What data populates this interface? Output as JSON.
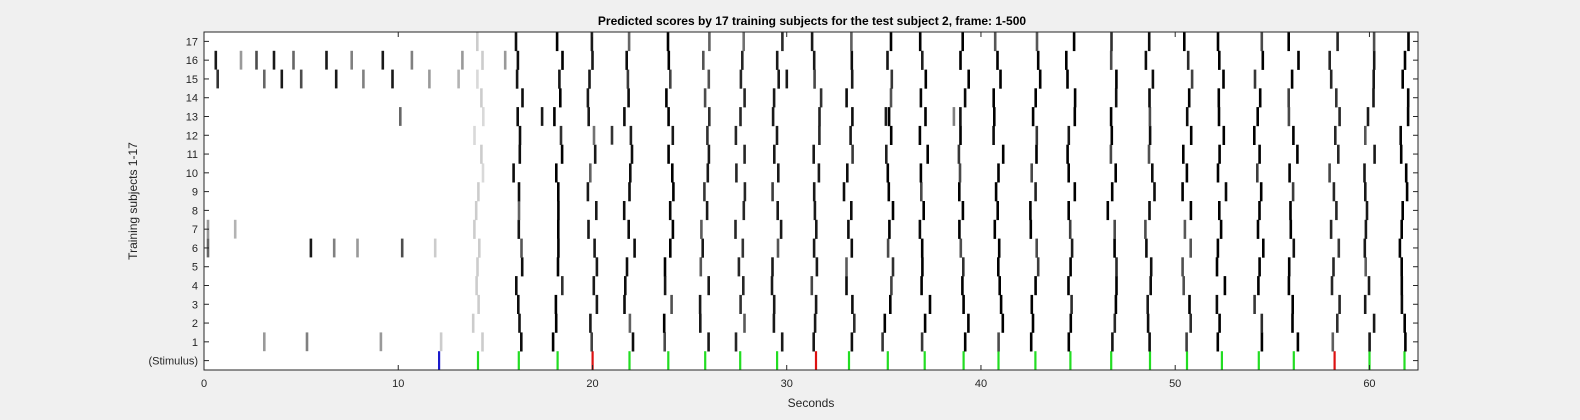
{
  "chart_data": {
    "type": "heatmap",
    "title": "Predicted scores by 17 training subjects for the test subject 2, frame: 1-500",
    "xlabel": "Seconds",
    "ylabel": "Training subjects 1-17",
    "xlim": [
      0,
      62.5
    ],
    "xticks": [
      0,
      10,
      20,
      30,
      40,
      50,
      60
    ],
    "ytick_labels": [
      "(Stimulus)",
      "1",
      "2",
      "3",
      "4",
      "5",
      "6",
      "7",
      "8",
      "9",
      "10",
      "11",
      "12",
      "13",
      "14",
      "15",
      "16",
      "17"
    ],
    "grid": false,
    "background": "#ffffff",
    "stimulus": {
      "events": [
        {
          "t": 12.1,
          "color": "#1a1acc"
        },
        {
          "t": 14.1,
          "color": "#22dd22"
        },
        {
          "t": 16.2,
          "color": "#22dd22"
        },
        {
          "t": 18.2,
          "color": "#22dd22"
        },
        {
          "t": 20.0,
          "color": "#dd1111"
        },
        {
          "t": 21.9,
          "color": "#22dd22"
        },
        {
          "t": 23.9,
          "color": "#22dd22"
        },
        {
          "t": 25.8,
          "color": "#22dd22"
        },
        {
          "t": 27.6,
          "color": "#22dd22"
        },
        {
          "t": 29.5,
          "color": "#22dd22"
        },
        {
          "t": 31.5,
          "color": "#dd1111"
        },
        {
          "t": 33.2,
          "color": "#22dd22"
        },
        {
          "t": 35.2,
          "color": "#22dd22"
        },
        {
          "t": 37.1,
          "color": "#22dd22"
        },
        {
          "t": 39.1,
          "color": "#22dd22"
        },
        {
          "t": 40.9,
          "color": "#22dd22"
        },
        {
          "t": 42.8,
          "color": "#22dd22"
        },
        {
          "t": 44.6,
          "color": "#22dd22"
        },
        {
          "t": 46.7,
          "color": "#22dd22"
        },
        {
          "t": 48.7,
          "color": "#22dd22"
        },
        {
          "t": 50.6,
          "color": "#22dd22"
        },
        {
          "t": 52.4,
          "color": "#22dd22"
        },
        {
          "t": 54.3,
          "color": "#22dd22"
        },
        {
          "t": 56.1,
          "color": "#22dd22"
        },
        {
          "t": 58.2,
          "color": "#dd1111"
        },
        {
          "t": 60.0,
          "color": "#22dd22"
        },
        {
          "t": 61.8,
          "color": "#22dd22"
        }
      ]
    },
    "main_events": [
      14.1,
      16.2,
      18.2,
      20.0,
      21.9,
      23.9,
      25.8,
      27.6,
      29.5,
      31.5,
      33.2,
      35.2,
      37.1,
      39.1,
      40.9,
      42.8,
      44.6,
      46.7,
      48.7,
      50.6,
      52.4,
      54.3,
      56.1,
      58.2,
      60.0,
      61.8
    ],
    "event_intensity": [
      0.2,
      0.95,
      1.0,
      0.9,
      0.95,
      1.0,
      0.9,
      0.85,
      0.9,
      0.9,
      0.95,
      1.0,
      1.0,
      1.0,
      1.0,
      1.0,
      1.0,
      1.0,
      0.95,
      1.0,
      1.0,
      1.0,
      1.0,
      0.85,
      0.9,
      1.0
    ],
    "pre_stimulus_marks": [
      {
        "subject": 16,
        "t": 0.6,
        "v": 0.9
      },
      {
        "subject": 16,
        "t": 1.9,
        "v": 0.4
      },
      {
        "subject": 16,
        "t": 2.7,
        "v": 0.7
      },
      {
        "subject": 16,
        "t": 3.6,
        "v": 0.9
      },
      {
        "subject": 16,
        "t": 4.6,
        "v": 0.6
      },
      {
        "subject": 16,
        "t": 6.3,
        "v": 0.9
      },
      {
        "subject": 16,
        "t": 7.6,
        "v": 0.5
      },
      {
        "subject": 16,
        "t": 9.2,
        "v": 0.9
      },
      {
        "subject": 16,
        "t": 10.7,
        "v": 0.5
      },
      {
        "subject": 16,
        "t": 13.3,
        "v": 0.4
      },
      {
        "subject": 16,
        "t": 15.5,
        "v": 0.4
      },
      {
        "subject": 15,
        "t": 0.7,
        "v": 0.8
      },
      {
        "subject": 15,
        "t": 3.1,
        "v": 0.6
      },
      {
        "subject": 15,
        "t": 4.0,
        "v": 0.9
      },
      {
        "subject": 15,
        "t": 5.0,
        "v": 0.7
      },
      {
        "subject": 15,
        "t": 6.8,
        "v": 0.9
      },
      {
        "subject": 15,
        "t": 8.2,
        "v": 0.5
      },
      {
        "subject": 15,
        "t": 9.7,
        "v": 0.9
      },
      {
        "subject": 15,
        "t": 11.6,
        "v": 0.4
      },
      {
        "subject": 15,
        "t": 13.1,
        "v": 0.3
      },
      {
        "subject": 15,
        "t": 30.0,
        "v": 0.9
      },
      {
        "subject": 13,
        "t": 10.1,
        "v": 0.6
      },
      {
        "subject": 13,
        "t": 17.4,
        "v": 0.9
      },
      {
        "subject": 13,
        "t": 35.1,
        "v": 0.9
      },
      {
        "subject": 13,
        "t": 38.6,
        "v": 0.5
      },
      {
        "subject": 12,
        "t": 21.0,
        "v": 0.8
      },
      {
        "subject": 7,
        "t": 0.2,
        "v": 0.4
      },
      {
        "subject": 7,
        "t": 1.6,
        "v": 0.3
      },
      {
        "subject": 6,
        "t": 0.2,
        "v": 0.6
      },
      {
        "subject": 6,
        "t": 5.5,
        "v": 0.9
      },
      {
        "subject": 6,
        "t": 6.7,
        "v": 0.5
      },
      {
        "subject": 6,
        "t": 7.9,
        "v": 0.4
      },
      {
        "subject": 6,
        "t": 10.2,
        "v": 0.7
      },
      {
        "subject": 6,
        "t": 11.9,
        "v": 0.2
      },
      {
        "subject": 1,
        "t": 3.1,
        "v": 0.4
      },
      {
        "subject": 1,
        "t": 5.3,
        "v": 0.5
      },
      {
        "subject": 1,
        "t": 9.1,
        "v": 0.4
      },
      {
        "subject": 1,
        "t": 12.2,
        "v": 0.2
      }
    ]
  }
}
